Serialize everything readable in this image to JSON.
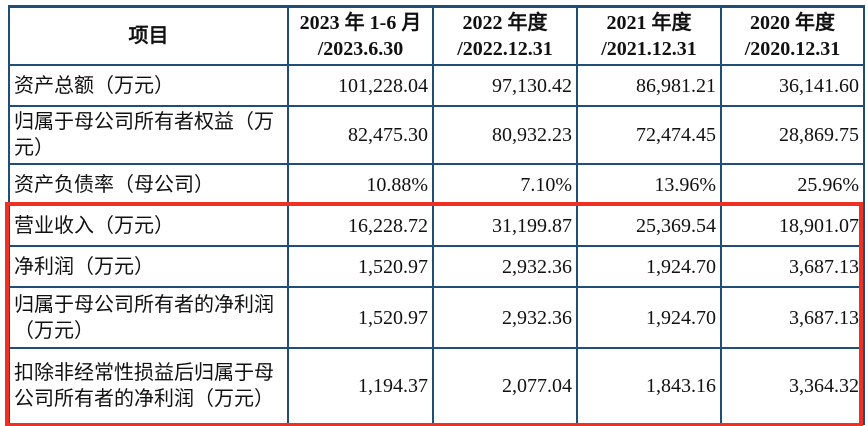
{
  "colors": {
    "table_border": "#1f4e79",
    "highlight_border": "#ee3124",
    "text": "#111111",
    "background": "#ffffff"
  },
  "table": {
    "header": {
      "item_label": "项目",
      "periods": [
        {
          "line1": "2023 年 1-6 月",
          "line2": "/2023.6.30"
        },
        {
          "line1": "2022 年度",
          "line2": "/2022.12.31"
        },
        {
          "line1": "2021 年度",
          "line2": "/2021.12.31"
        },
        {
          "line1": "2020 年度",
          "line2": "/2020.12.31"
        }
      ]
    },
    "rows": [
      {
        "label": "资产总额（万元）",
        "values": [
          "101,228.04",
          "97,130.42",
          "86,981.21",
          "36,141.60"
        ],
        "highlighted": false
      },
      {
        "label": "归属于母公司所有者权益（万元）",
        "values": [
          "82,475.30",
          "80,932.23",
          "72,474.45",
          "28,869.75"
        ],
        "highlighted": false
      },
      {
        "label": "资产负债率（母公司）",
        "values": [
          "10.88%",
          "7.10%",
          "13.96%",
          "25.96%"
        ],
        "highlighted": false
      },
      {
        "label": "营业收入（万元）",
        "values": [
          "16,228.72",
          "31,199.87",
          "25,369.54",
          "18,901.07"
        ],
        "highlighted": true
      },
      {
        "label": "净利润（万元）",
        "values": [
          "1,520.97",
          "2,932.36",
          "1,924.70",
          "3,687.13"
        ],
        "highlighted": true
      },
      {
        "label": "归属于母公司所有者的净利润（万元）",
        "values": [
          "1,520.97",
          "2,932.36",
          "1,924.70",
          "3,687.13"
        ],
        "highlighted": true
      },
      {
        "label": "扣除非经常性损益后归属于母公司所有者的净利润（万元）",
        "values": [
          "1,194.37",
          "2,077.04",
          "1,843.16",
          "3,364.32"
        ],
        "highlighted": true
      }
    ]
  }
}
